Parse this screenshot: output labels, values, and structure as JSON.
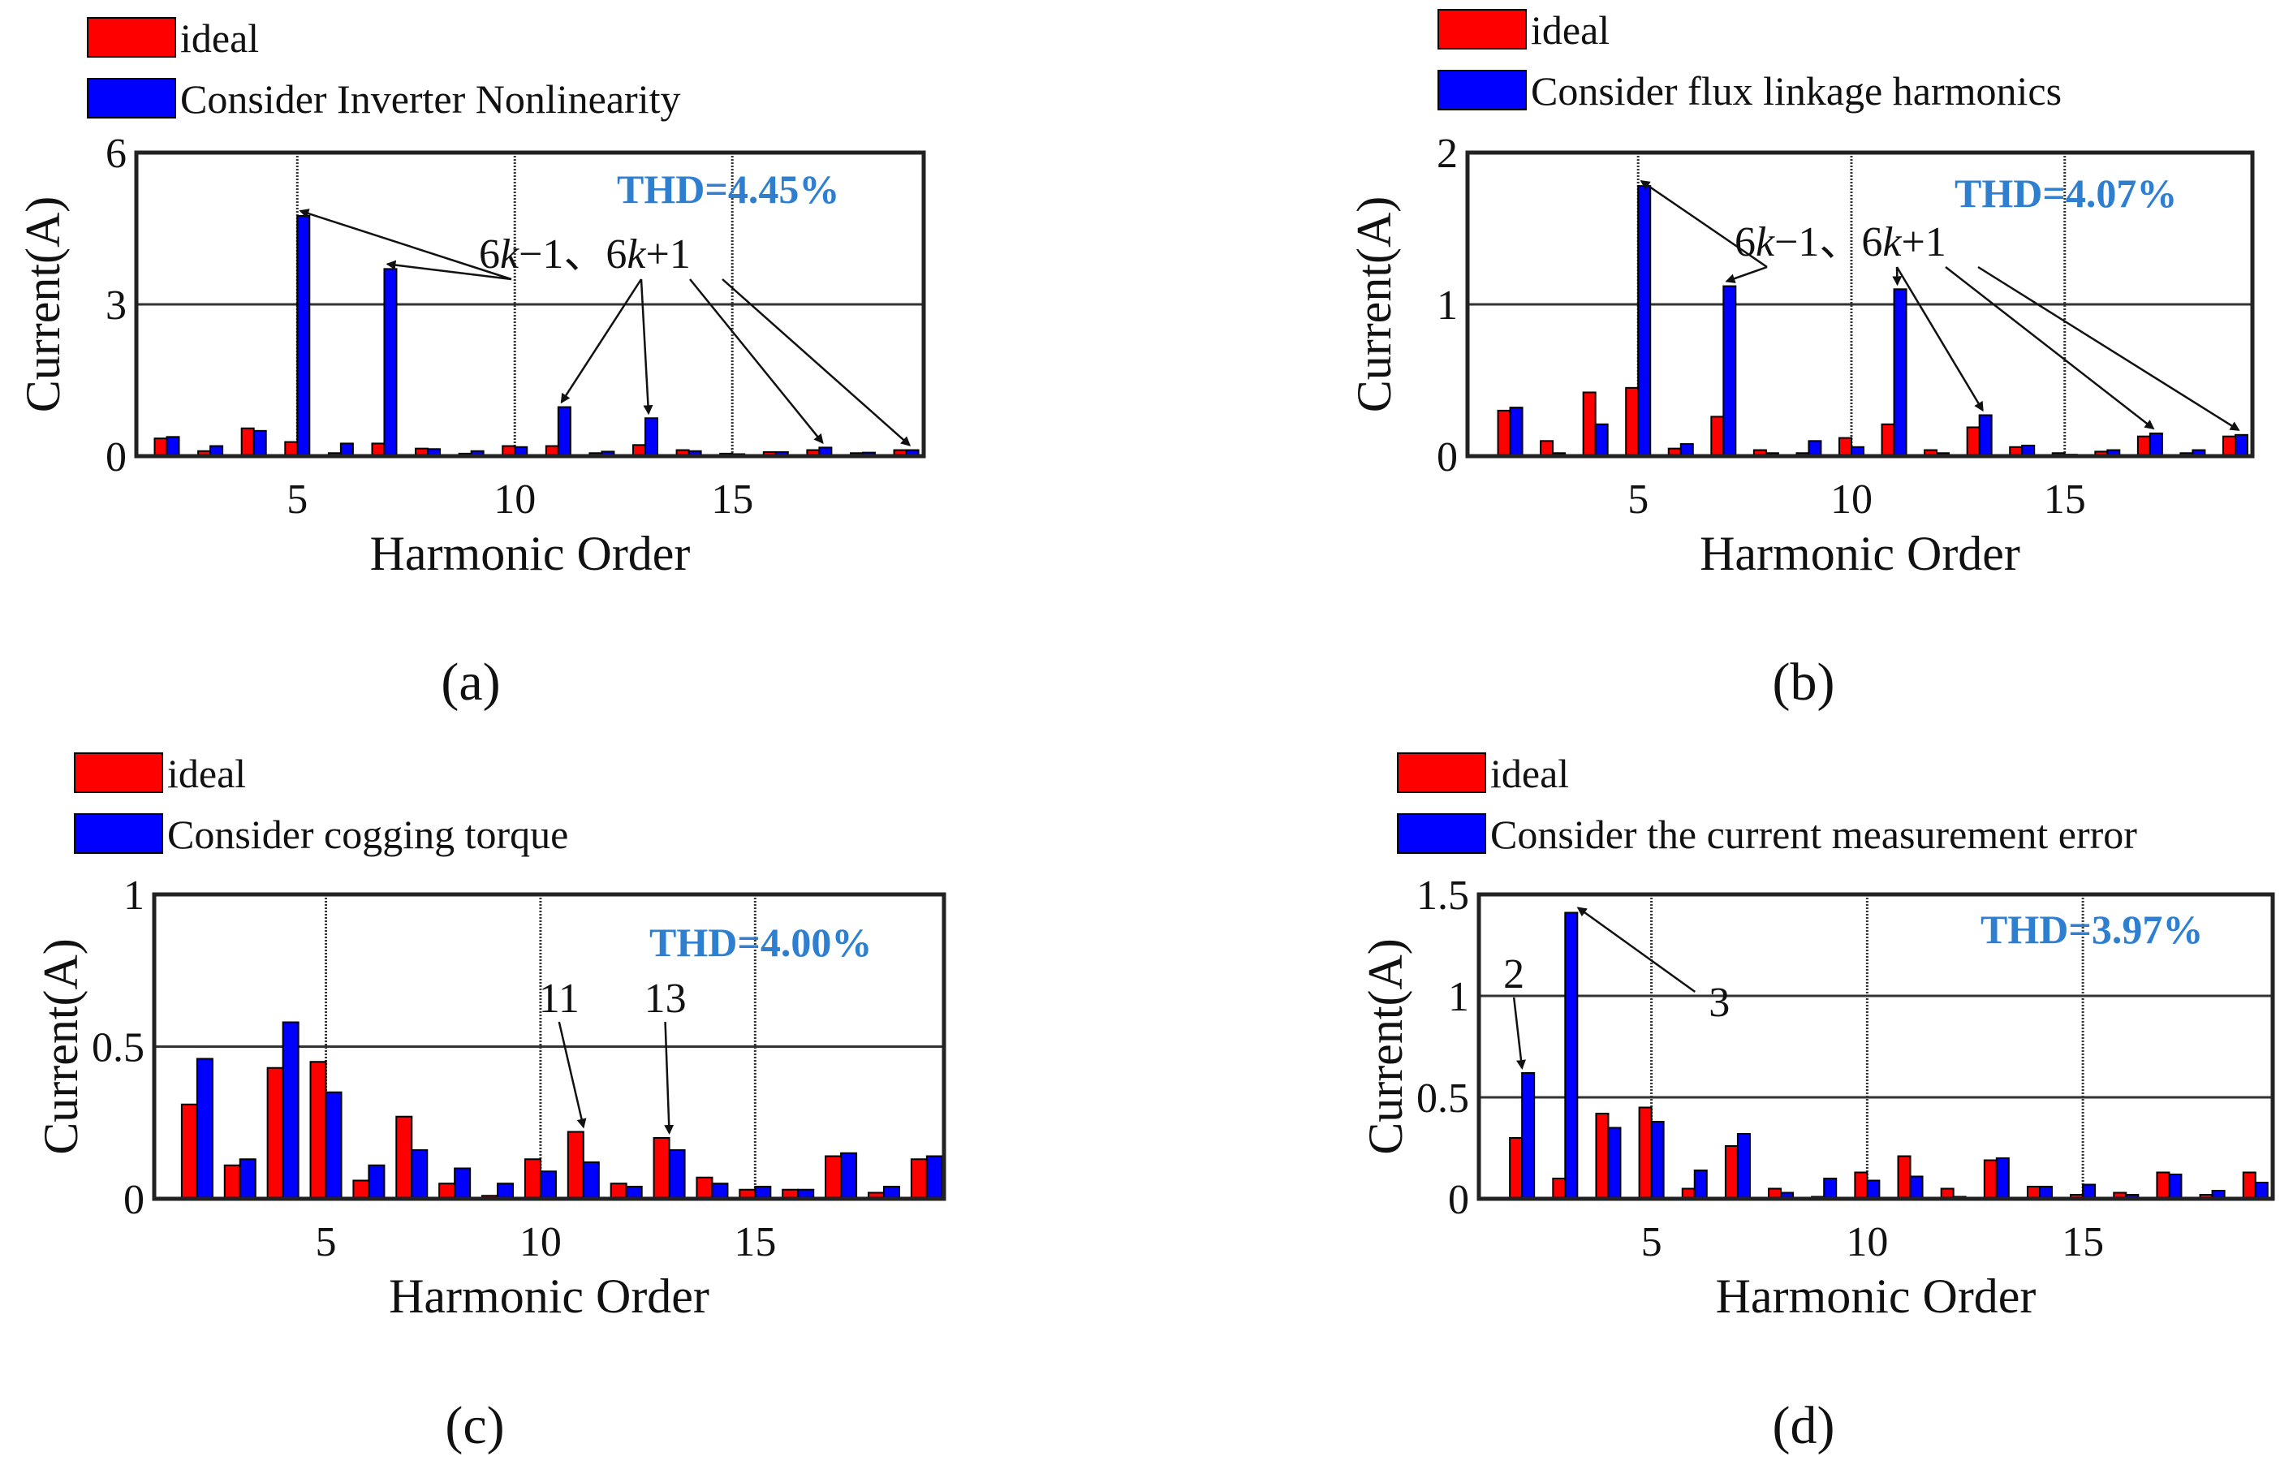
{
  "figure": {
    "colors": {
      "ideal": "#ff0000",
      "other": "#0000ff",
      "thd": "#2f7fd0",
      "axis": "#222222",
      "grid": "#333333"
    }
  },
  "chart_data": [
    {
      "type": "bar",
      "panel_label": "(a)",
      "xlabel": "Harmonic Order",
      "ylabel": "Current(A)",
      "ylim": [
        0,
        6
      ],
      "yticks": [
        "0",
        "3",
        "6"
      ],
      "ytick_values": [
        0,
        3,
        6
      ],
      "xticks": [
        "5",
        "10",
        "15"
      ],
      "xtick_values": [
        5,
        10,
        15
      ],
      "xrange": [
        1.3,
        19.4
      ],
      "thd": "THD=4.45%",
      "legend": [
        "ideal",
        "Consider Inverter Nonlinearity"
      ],
      "annotation": {
        "prefix": "6",
        "k1": "k",
        "mid": "−1、6",
        "k2": "k",
        "suffix": "+1"
      },
      "arrow_targets": [
        5,
        7,
        11,
        13,
        17,
        19
      ],
      "categories": [
        2,
        3,
        4,
        5,
        6,
        7,
        8,
        9,
        10,
        11,
        12,
        13,
        14,
        15,
        16,
        17,
        18,
        19
      ],
      "series": [
        {
          "name": "ideal",
          "values": [
            0.35,
            0.1,
            0.55,
            0.28,
            0.06,
            0.25,
            0.15,
            0.05,
            0.2,
            0.2,
            0.06,
            0.22,
            0.12,
            0.05,
            0.08,
            0.12,
            0.06,
            0.12
          ]
        },
        {
          "name": "Consider Inverter Nonlinearity",
          "values": [
            0.38,
            0.2,
            0.5,
            4.75,
            0.25,
            3.7,
            0.14,
            0.1,
            0.18,
            0.97,
            0.09,
            0.75,
            0.1,
            0.04,
            0.08,
            0.17,
            0.07,
            0.12
          ]
        }
      ]
    },
    {
      "type": "bar",
      "panel_label": "(b)",
      "xlabel": "Harmonic Order",
      "ylabel": "Current(A)",
      "ylim": [
        0,
        2
      ],
      "yticks": [
        "0",
        "1",
        "2"
      ],
      "ytick_values": [
        0,
        1,
        2
      ],
      "xticks": [
        "5",
        "10",
        "15"
      ],
      "xtick_values": [
        5,
        10,
        15
      ],
      "xrange": [
        1.0,
        19.4
      ],
      "thd": "THD=4.07%",
      "legend": [
        "ideal",
        "Consider flux linkage harmonics"
      ],
      "annotation": {
        "prefix": "6",
        "k1": "k",
        "mid": "−1、6",
        "k2": "k",
        "suffix": "+1"
      },
      "arrow_targets": [
        5,
        7,
        11,
        13,
        17,
        19
      ],
      "categories": [
        2,
        3,
        4,
        5,
        6,
        7,
        8,
        9,
        10,
        11,
        12,
        13,
        14,
        15,
        16,
        17,
        18,
        19
      ],
      "series": [
        {
          "name": "ideal",
          "values": [
            0.3,
            0.1,
            0.42,
            0.45,
            0.05,
            0.26,
            0.04,
            0.02,
            0.12,
            0.21,
            0.04,
            0.19,
            0.06,
            0.02,
            0.03,
            0.13,
            0.02,
            0.13
          ]
        },
        {
          "name": "Consider flux linkage harmonics",
          "values": [
            0.32,
            0.02,
            0.21,
            1.78,
            0.08,
            1.12,
            0.02,
            0.1,
            0.06,
            1.1,
            0.02,
            0.27,
            0.07,
            0.01,
            0.04,
            0.15,
            0.04,
            0.14
          ]
        }
      ]
    },
    {
      "type": "bar",
      "panel_label": "(c)",
      "xlabel": "Harmonic Order",
      "ylabel": "Current(A)",
      "ylim": [
        0,
        1
      ],
      "yticks": [
        "0",
        "0.5",
        "1"
      ],
      "ytick_values": [
        0,
        0.5,
        1
      ],
      "xticks": [
        "5",
        "10",
        "15"
      ],
      "xtick_values": [
        5,
        10,
        15
      ],
      "xrange": [
        1.0,
        19.4
      ],
      "thd": "THD=4.00%",
      "legend": [
        "ideal",
        "Consider cogging torque"
      ],
      "labels": [
        "11",
        "13"
      ],
      "arrow_targets": [
        11,
        13
      ],
      "categories": [
        2,
        3,
        4,
        5,
        6,
        7,
        8,
        9,
        10,
        11,
        12,
        13,
        14,
        15,
        16,
        17,
        18,
        19
      ],
      "series": [
        {
          "name": "ideal",
          "values": [
            0.31,
            0.11,
            0.43,
            0.45,
            0.06,
            0.27,
            0.05,
            0.01,
            0.13,
            0.22,
            0.05,
            0.2,
            0.07,
            0.03,
            0.03,
            0.14,
            0.02,
            0.13
          ]
        },
        {
          "name": "Consider cogging torque",
          "values": [
            0.46,
            0.13,
            0.58,
            0.35,
            0.11,
            0.16,
            0.1,
            0.05,
            0.09,
            0.12,
            0.04,
            0.16,
            0.05,
            0.04,
            0.03,
            0.15,
            0.04,
            0.14
          ]
        }
      ]
    },
    {
      "type": "bar",
      "panel_label": "(d)",
      "xlabel": "Harmonic Order",
      "ylabel": "Current(A)",
      "ylim": [
        0,
        1.5
      ],
      "yticks": [
        "0",
        "0.5",
        "1",
        "1.5"
      ],
      "ytick_values": [
        0,
        0.5,
        1,
        1.5
      ],
      "xticks": [
        "5",
        "10",
        "15"
      ],
      "xtick_values": [
        5,
        10,
        15
      ],
      "xrange": [
        1.0,
        19.4
      ],
      "thd": "THD=3.97%",
      "legend": [
        "ideal",
        "Consider the current measurement error"
      ],
      "labels": [
        "2",
        "3"
      ],
      "arrow_targets": [
        2,
        3
      ],
      "categories": [
        2,
        3,
        4,
        5,
        6,
        7,
        8,
        9,
        10,
        11,
        12,
        13,
        14,
        15,
        16,
        17,
        18,
        19
      ],
      "series": [
        {
          "name": "ideal",
          "values": [
            0.3,
            0.1,
            0.42,
            0.45,
            0.05,
            0.26,
            0.05,
            0.01,
            0.13,
            0.21,
            0.05,
            0.19,
            0.06,
            0.02,
            0.03,
            0.13,
            0.02,
            0.13
          ]
        },
        {
          "name": "Consider the current measurement error",
          "values": [
            0.62,
            1.41,
            0.35,
            0.38,
            0.14,
            0.32,
            0.03,
            0.1,
            0.09,
            0.11,
            0.01,
            0.2,
            0.06,
            0.07,
            0.02,
            0.12,
            0.04,
            0.08
          ]
        }
      ]
    }
  ]
}
